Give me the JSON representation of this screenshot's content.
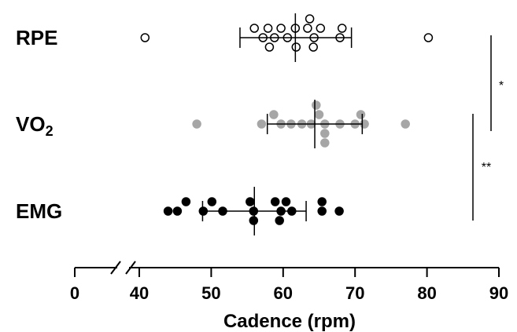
{
  "chart_data": {
    "type": "scatter",
    "xlabel": "Cadence (rpm)",
    "xlim": [
      0,
      90
    ],
    "axis_break": [
      0,
      40
    ],
    "x_ticks": [
      0,
      40,
      50,
      60,
      70,
      80,
      90
    ],
    "grid": false,
    "categories": [
      "RPE",
      "VO2",
      "EMG"
    ],
    "series": [
      {
        "name": "RPE",
        "label_main": "RPE",
        "label_sub": "",
        "fill": "#ffffff",
        "stroke": "#000000",
        "mean": 61.7,
        "sd_low": 54.0,
        "sd_high": 69.5,
        "values": [
          40.8,
          57.2,
          58.8,
          60.6,
          64.3,
          67.9,
          80.2,
          56.0,
          57.9,
          59.7,
          61.7,
          63.4,
          64.2,
          68.2,
          58.1,
          61.8,
          63.7,
          65.2
        ]
      },
      {
        "name": "VO2",
        "label_main": "VO",
        "label_sub": "2",
        "fill": "#a6a6a6",
        "stroke": "#a6a6a6",
        "mean": 64.4,
        "sd_low": 57.8,
        "sd_high": 71.0,
        "values": [
          65.8,
          59.7,
          62.6,
          65.0,
          70.0,
          71.3,
          48.0,
          57.0,
          61.1,
          67.9,
          77.0,
          58.7,
          63.9,
          65.8,
          70.8,
          64.6,
          65.8
        ]
      },
      {
        "name": "EMG",
        "label_main": "EMG",
        "label_sub": "",
        "fill": "#000000",
        "stroke": "#000000",
        "mean": 56.0,
        "sd_low": 48.8,
        "sd_high": 63.2,
        "values": [
          55.9,
          59.7,
          65.4,
          44.0,
          45.3,
          46.5,
          48.9,
          50.1,
          51.6,
          55.4,
          58.9,
          60.4,
          67.8,
          65.4,
          55.9,
          59.5,
          61.2
        ]
      }
    ],
    "significance": [
      {
        "label": "*",
        "from": "RPE",
        "to": "VO2"
      },
      {
        "label": "**",
        "from": "VO2",
        "to": "EMG"
      }
    ]
  }
}
